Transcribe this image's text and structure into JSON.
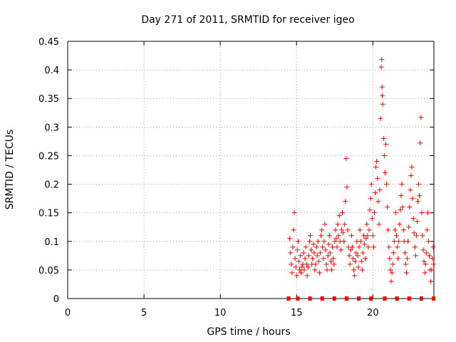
{
  "chart_data": {
    "type": "scatter",
    "title": "Day 271 of 2011, SRMTID for receiver igeo",
    "xlabel": "GPS time / hours",
    "ylabel": "SRMTID / TECUs",
    "xlim": [
      0,
      24
    ],
    "ylim": [
      0,
      0.45
    ],
    "x_ticks": [
      0,
      5,
      10,
      15,
      20
    ],
    "y_ticks": [
      0,
      0.05,
      0.1,
      0.15,
      0.2,
      0.25,
      0.3,
      0.35,
      0.4,
      0.45
    ],
    "x_tick_labels": [
      "0",
      "5",
      "10",
      "15",
      "20"
    ],
    "y_tick_labels": [
      "0",
      "0.05",
      "0.1",
      "0.15",
      "0.2",
      "0.25",
      "0.3",
      "0.35",
      "0.4",
      "0.45"
    ],
    "grid": true,
    "marker_color": "#ff0000",
    "baseline_marks_x": [
      14.5,
      15.1,
      15.9,
      16.7,
      17.5,
      18.3,
      19.1,
      19.9,
      20.8,
      21.6,
      22.4,
      23.2,
      24.0
    ],
    "series": [
      {
        "name": "SRMTID",
        "points": [
          [
            14.55,
            0.105
          ],
          [
            14.6,
            0.08
          ],
          [
            14.65,
            0.06
          ],
          [
            14.7,
            0.045
          ],
          [
            14.75,
            0.09
          ],
          [
            14.8,
            0.12
          ],
          [
            14.85,
            0.15
          ],
          [
            14.9,
            0.07
          ],
          [
            14.95,
            0.055
          ],
          [
            15.0,
            0.04
          ],
          [
            15.05,
            0.085
          ],
          [
            15.1,
            0.1
          ],
          [
            15.15,
            0.065
          ],
          [
            15.2,
            0.05
          ],
          [
            15.25,
            0.075
          ],
          [
            15.3,
            0.045
          ],
          [
            15.35,
            0.055
          ],
          [
            15.4,
            0.06
          ],
          [
            15.45,
            0.08
          ],
          [
            15.5,
            0.05
          ],
          [
            15.55,
            0.07
          ],
          [
            15.6,
            0.09
          ],
          [
            15.65,
            0.06
          ],
          [
            15.7,
            0.04
          ],
          [
            15.75,
            0.055
          ],
          [
            15.8,
            0.075
          ],
          [
            15.85,
            0.1
          ],
          [
            15.9,
            0.11
          ],
          [
            15.95,
            0.085
          ],
          [
            16.0,
            0.06
          ],
          [
            16.05,
            0.07
          ],
          [
            16.1,
            0.095
          ],
          [
            16.15,
            0.08
          ],
          [
            16.2,
            0.05
          ],
          [
            16.25,
            0.06
          ],
          [
            16.3,
            0.09
          ],
          [
            16.35,
            0.075
          ],
          [
            16.4,
            0.1
          ],
          [
            16.45,
            0.065
          ],
          [
            16.5,
            0.045
          ],
          [
            16.55,
            0.08
          ],
          [
            16.6,
            0.11
          ],
          [
            16.65,
            0.12
          ],
          [
            16.7,
            0.09
          ],
          [
            16.75,
            0.07
          ],
          [
            16.8,
            0.1
          ],
          [
            16.85,
            0.13
          ],
          [
            16.9,
            0.085
          ],
          [
            16.95,
            0.06
          ],
          [
            17.0,
            0.05
          ],
          [
            17.05,
            0.075
          ],
          [
            17.1,
            0.095
          ],
          [
            17.15,
            0.11
          ],
          [
            17.2,
            0.08
          ],
          [
            17.25,
            0.065
          ],
          [
            17.3,
            0.05
          ],
          [
            17.35,
            0.09
          ],
          [
            17.4,
            0.07
          ],
          [
            17.45,
            0.06
          ],
          [
            17.5,
            0.1
          ],
          [
            17.55,
            0.12
          ],
          [
            17.6,
            0.105
          ],
          [
            17.65,
            0.09
          ],
          [
            17.7,
            0.13
          ],
          [
            17.75,
            0.11
          ],
          [
            17.8,
            0.145
          ],
          [
            17.85,
            0.1
          ],
          [
            17.9,
            0.085
          ],
          [
            17.95,
            0.12
          ],
          [
            18.0,
            0.15
          ],
          [
            18.05,
            0.115
          ],
          [
            18.1,
            0.1
          ],
          [
            18.15,
            0.13
          ],
          [
            18.2,
            0.17
          ],
          [
            18.25,
            0.245
          ],
          [
            18.3,
            0.195
          ],
          [
            18.35,
            0.12
          ],
          [
            18.4,
            0.09
          ],
          [
            18.45,
            0.075
          ],
          [
            18.5,
            0.06
          ],
          [
            18.55,
            0.085
          ],
          [
            18.6,
            0.11
          ],
          [
            18.65,
            0.09
          ],
          [
            18.7,
            0.07
          ],
          [
            18.75,
            0.05
          ],
          [
            18.8,
            0.04
          ],
          [
            18.85,
            0.065
          ],
          [
            18.9,
            0.08
          ],
          [
            18.95,
            0.1
          ],
          [
            19.0,
            0.075
          ],
          [
            19.05,
            0.055
          ],
          [
            19.1,
            0.09
          ],
          [
            19.15,
            0.12
          ],
          [
            19.2,
            0.1
          ],
          [
            19.25,
            0.065
          ],
          [
            19.3,
            0.05
          ],
          [
            19.35,
            0.08
          ],
          [
            19.4,
            0.11
          ],
          [
            19.45,
            0.095
          ],
          [
            19.5,
            0.07
          ],
          [
            19.55,
            0.105
          ],
          [
            19.6,
            0.13
          ],
          [
            19.65,
            0.11
          ],
          [
            19.7,
            0.09
          ],
          [
            19.75,
            0.12
          ],
          [
            19.8,
            0.155
          ],
          [
            19.85,
            0.175
          ],
          [
            19.9,
            0.2
          ],
          [
            19.95,
            0.14
          ],
          [
            20.0,
            0.11
          ],
          [
            20.05,
            0.09
          ],
          [
            20.1,
            0.15
          ],
          [
            20.15,
            0.185
          ],
          [
            20.2,
            0.23
          ],
          [
            20.25,
            0.24
          ],
          [
            20.3,
            0.21
          ],
          [
            20.35,
            0.17
          ],
          [
            20.4,
            0.13
          ],
          [
            20.45,
            0.19
          ],
          [
            20.5,
            0.315
          ],
          [
            20.55,
            0.405
          ],
          [
            20.58,
            0.418
          ],
          [
            20.6,
            0.37
          ],
          [
            20.62,
            0.355
          ],
          [
            20.65,
            0.34
          ],
          [
            20.7,
            0.28
          ],
          [
            20.75,
            0.25
          ],
          [
            20.8,
            0.22
          ],
          [
            20.85,
            0.27
          ],
          [
            20.9,
            0.2
          ],
          [
            20.95,
            0.16
          ],
          [
            21.0,
            0.12
          ],
          [
            21.05,
            0.09
          ],
          [
            21.1,
            0.07
          ],
          [
            21.15,
            0.05
          ],
          [
            21.2,
            0.03
          ],
          [
            21.25,
            0.045
          ],
          [
            21.3,
            0.06
          ],
          [
            21.35,
            0.08
          ],
          [
            21.4,
            0.1
          ],
          [
            21.45,
            0.12
          ],
          [
            21.5,
            0.15
          ],
          [
            21.55,
            0.11
          ],
          [
            21.6,
            0.09
          ],
          [
            21.65,
            0.07
          ],
          [
            21.7,
            0.1
          ],
          [
            21.75,
            0.13
          ],
          [
            21.8,
            0.155
          ],
          [
            21.85,
            0.18
          ],
          [
            21.9,
            0.2
          ],
          [
            21.95,
            0.16
          ],
          [
            22.0,
            0.12
          ],
          [
            22.05,
            0.1
          ],
          [
            22.1,
            0.08
          ],
          [
            22.15,
            0.06
          ],
          [
            22.2,
            0.045
          ],
          [
            22.25,
            0.07
          ],
          [
            22.3,
            0.1
          ],
          [
            22.35,
            0.125
          ],
          [
            22.4,
            0.16
          ],
          [
            22.45,
            0.19
          ],
          [
            22.5,
            0.215
          ],
          [
            22.55,
            0.23
          ],
          [
            22.6,
            0.175
          ],
          [
            22.65,
            0.14
          ],
          [
            22.7,
            0.115
          ],
          [
            22.75,
            0.09
          ],
          [
            22.8,
            0.075
          ],
          [
            22.85,
            0.11
          ],
          [
            22.9,
            0.135
          ],
          [
            22.95,
            0.17
          ],
          [
            23.0,
            0.2
          ],
          [
            23.05,
            0.18
          ],
          [
            23.1,
            0.272
          ],
          [
            23.15,
            0.317
          ],
          [
            23.2,
            0.15
          ],
          [
            23.25,
            0.11
          ],
          [
            23.3,
            0.085
          ],
          [
            23.35,
            0.065
          ],
          [
            23.4,
            0.045
          ],
          [
            23.45,
            0.06
          ],
          [
            23.5,
            0.08
          ],
          [
            23.55,
            0.12
          ],
          [
            23.6,
            0.15
          ],
          [
            23.65,
            0.1
          ],
          [
            23.7,
            0.075
          ],
          [
            23.75,
            0.05
          ],
          [
            23.8,
            0.03
          ],
          [
            23.85,
            0.05
          ],
          [
            23.9,
            0.07
          ],
          [
            23.95,
            0.09
          ],
          [
            23.98,
            0.06
          ]
        ]
      }
    ]
  }
}
